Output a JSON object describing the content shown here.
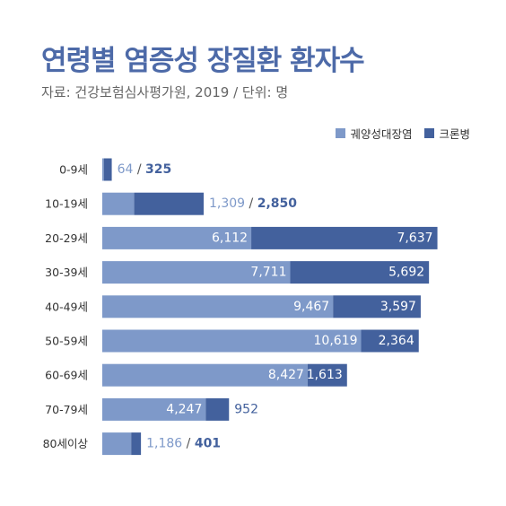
{
  "title": "연령별 염증성 장질환 환자수",
  "source": "자료: 건강보험심사평가원, 2019 / 단위: 명",
  "colors": {
    "uc": "#7e99c9",
    "crohn": "#43619d",
    "title": "#4d6aa8"
  },
  "chart_data": {
    "type": "bar",
    "orientation": "horizontal",
    "stacked": true,
    "title": "연령별 염증성 장질환 환자수",
    "subtitle": "자료: 건강보험심사평가원, 2019 / 단위: 명",
    "legend_position": "top-right",
    "categories": [
      "0-9세",
      "10-19세",
      "20-29세",
      "30-39세",
      "40-49세",
      "50-59세",
      "60-69세",
      "70-79세",
      "80세이상"
    ],
    "series": [
      {
        "name": "궤양성대장염",
        "values": [
          64,
          1309,
          6112,
          7711,
          9467,
          10619,
          8427,
          4247,
          1186
        ]
      },
      {
        "name": "크론병",
        "values": [
          325,
          2850,
          7637,
          5692,
          3597,
          2364,
          1613,
          952,
          401
        ]
      }
    ],
    "separator": "/"
  }
}
